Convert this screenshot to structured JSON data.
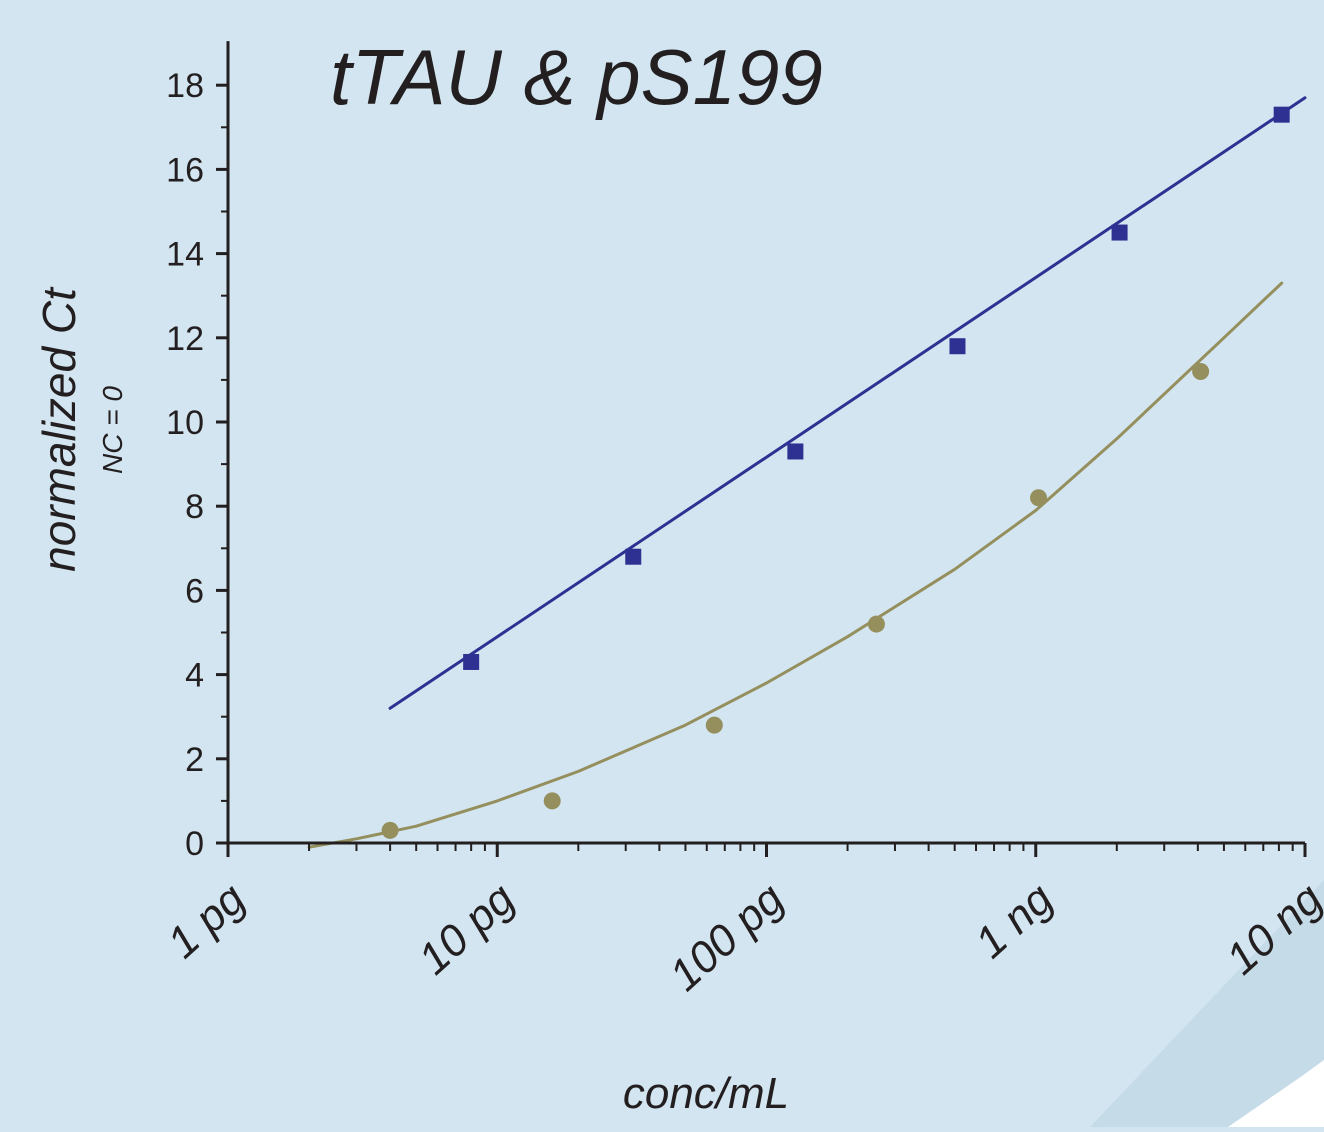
{
  "chart_data": {
    "type": "scatter",
    "title": "tTAU & pS199",
    "xlabel": "conc/mL",
    "ylabel": "normalized Ct",
    "ylabel_sub": "NC = 0",
    "x_scale": "log",
    "x_unit": "pg/mL",
    "xlim": [
      1,
      10000
    ],
    "ylim": [
      0,
      19
    ],
    "x_ticks": [
      {
        "value": 1,
        "label": "1 pg"
      },
      {
        "value": 10,
        "label": "10 pg"
      },
      {
        "value": 100,
        "label": "100 pg"
      },
      {
        "value": 1000,
        "label": "1 ng"
      },
      {
        "value": 10000,
        "label": "10 ng"
      }
    ],
    "y_ticks": [
      0,
      2,
      4,
      6,
      8,
      10,
      12,
      14,
      16,
      18
    ],
    "grid": false,
    "legend": "none",
    "series": [
      {
        "marker": "square",
        "color": "#2e3192",
        "x": [
          8,
          32,
          128,
          512,
          2048,
          8192
        ],
        "y": [
          4.3,
          6.8,
          9.3,
          11.8,
          14.5,
          17.3
        ],
        "fit": {
          "x": [
            4,
            10000
          ],
          "y": [
            3.2,
            17.7
          ]
        }
      },
      {
        "marker": "circle",
        "color": "#958f5e",
        "x": [
          4,
          16,
          64,
          256,
          1024,
          4096
        ],
        "y": [
          0.3,
          1.0,
          2.8,
          5.2,
          8.2,
          11.2
        ],
        "fit": {
          "x": [
            2,
            3,
            5,
            10,
            20,
            50,
            100,
            200,
            500,
            1000,
            2000,
            5000,
            8192
          ],
          "y": [
            -0.1,
            0.1,
            0.4,
            1.0,
            1.7,
            2.8,
            3.8,
            4.9,
            6.5,
            7.9,
            9.6,
            12.0,
            13.3
          ]
        }
      }
    ]
  },
  "colors": {
    "background": "#d2e5f0",
    "axis": "#231f20",
    "corner_stripe": "#ffffff"
  }
}
